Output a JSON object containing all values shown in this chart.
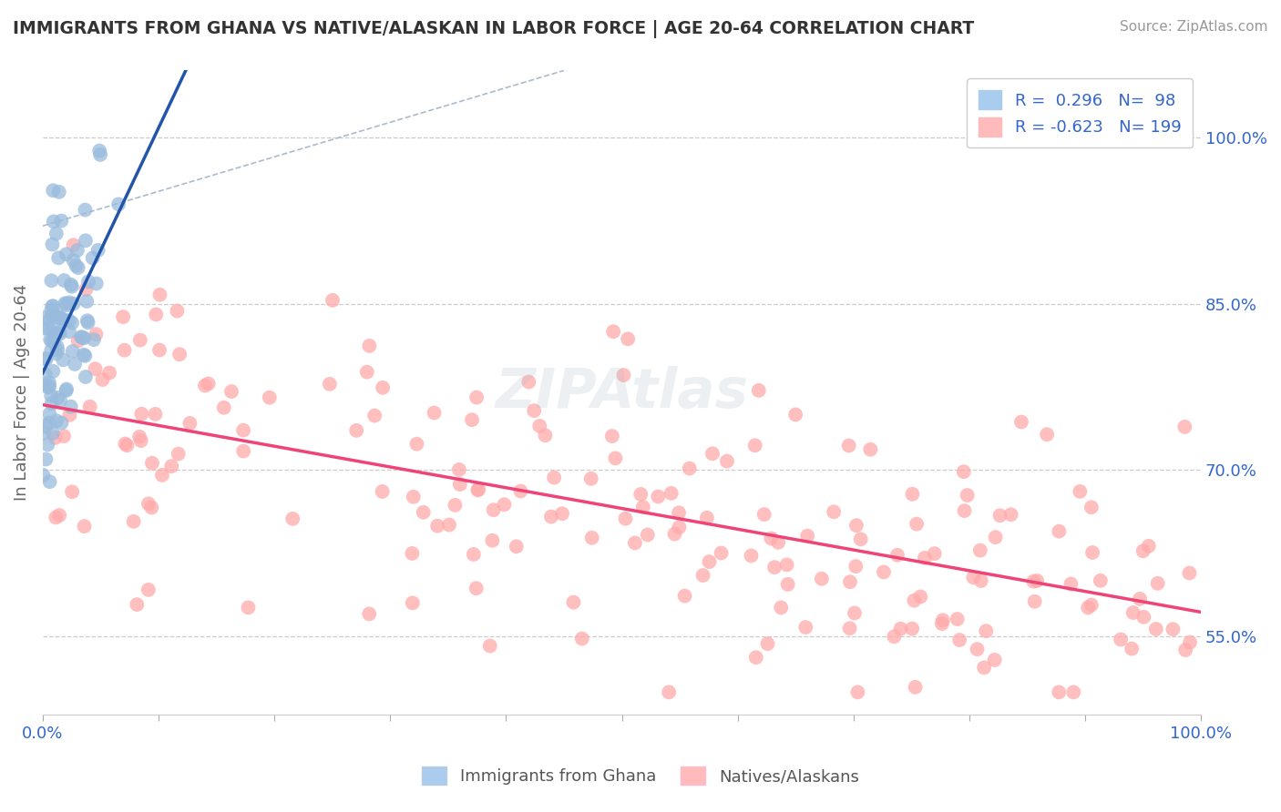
{
  "title": "IMMIGRANTS FROM GHANA VS NATIVE/ALASKAN IN LABOR FORCE | AGE 20-64 CORRELATION CHART",
  "source": "Source: ZipAtlas.com",
  "ylabel": "In Labor Force | Age 20-64",
  "xlim": [
    0.0,
    1.0
  ],
  "ylim": [
    0.48,
    1.06
  ],
  "y_ticks": [
    0.55,
    0.7,
    0.85,
    1.0
  ],
  "y_tick_labels": [
    "55.0%",
    "70.0%",
    "85.0%",
    "100.0%"
  ],
  "blue_color": "#99BBDD",
  "pink_color": "#FFAAAA",
  "blue_fill": "#7AAADD",
  "pink_fill": "#FF9999",
  "blue_line_color": "#2255AA",
  "pink_line_color": "#EE4477",
  "legend_text_color": "#3366CC",
  "background_color": "#FFFFFF",
  "grid_color": "#CCCCCC",
  "R_ghana": 0.296,
  "N_ghana": 98,
  "R_native": -0.623,
  "N_native": 199,
  "seed": 42
}
